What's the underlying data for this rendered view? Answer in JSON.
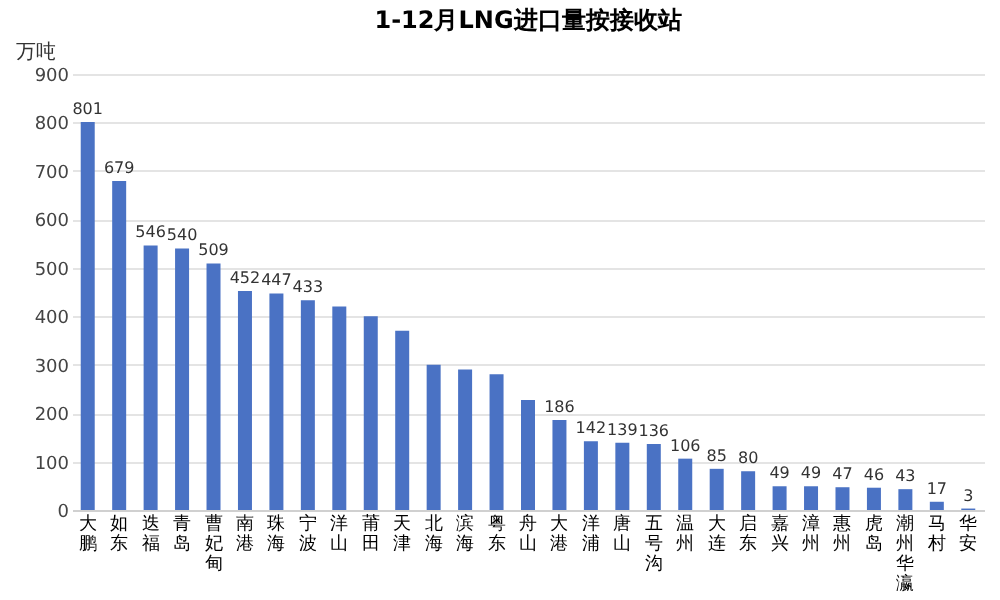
{
  "chart_data": {
    "type": "bar",
    "title": "1-12月LNG进口量按接收站",
    "ylabel": "万吨",
    "categories": [
      "大鹏",
      "如东",
      "迭福",
      "青岛",
      "曹妃甸",
      "南港",
      "珠海",
      "宁波",
      "洋山",
      "莆田",
      "天津",
      "北海",
      "滨海",
      "粤东",
      "舟山",
      "大港",
      "洋浦",
      "唐山",
      "五号沟",
      "温州",
      "大连",
      "启东",
      "嘉兴",
      "漳州",
      "惠州",
      "虎岛",
      "潮州华瀛",
      "马村",
      "华安"
    ],
    "values": [
      801,
      679,
      546,
      540,
      509,
      452,
      447,
      433,
      420,
      400,
      370,
      300,
      290,
      280,
      227,
      186,
      142,
      139,
      136,
      106,
      85,
      80,
      49,
      49,
      47,
      46,
      43,
      17,
      3
    ],
    "value_labels": [
      "801",
      "679",
      "546",
      "540",
      "509",
      "452",
      "447",
      "433",
      null,
      null,
      null,
      null,
      null,
      null,
      null,
      "186",
      "142",
      "139",
      "136",
      "106",
      "85",
      "80",
      "49",
      "49",
      "47",
      "46",
      "43",
      "17",
      "3"
    ],
    "color": "#4a72c4",
    "ylim": [
      0,
      900
    ],
    "yticks": [
      0,
      100,
      200,
      300,
      400,
      500,
      600,
      700,
      800,
      900
    ],
    "grid": "y"
  }
}
